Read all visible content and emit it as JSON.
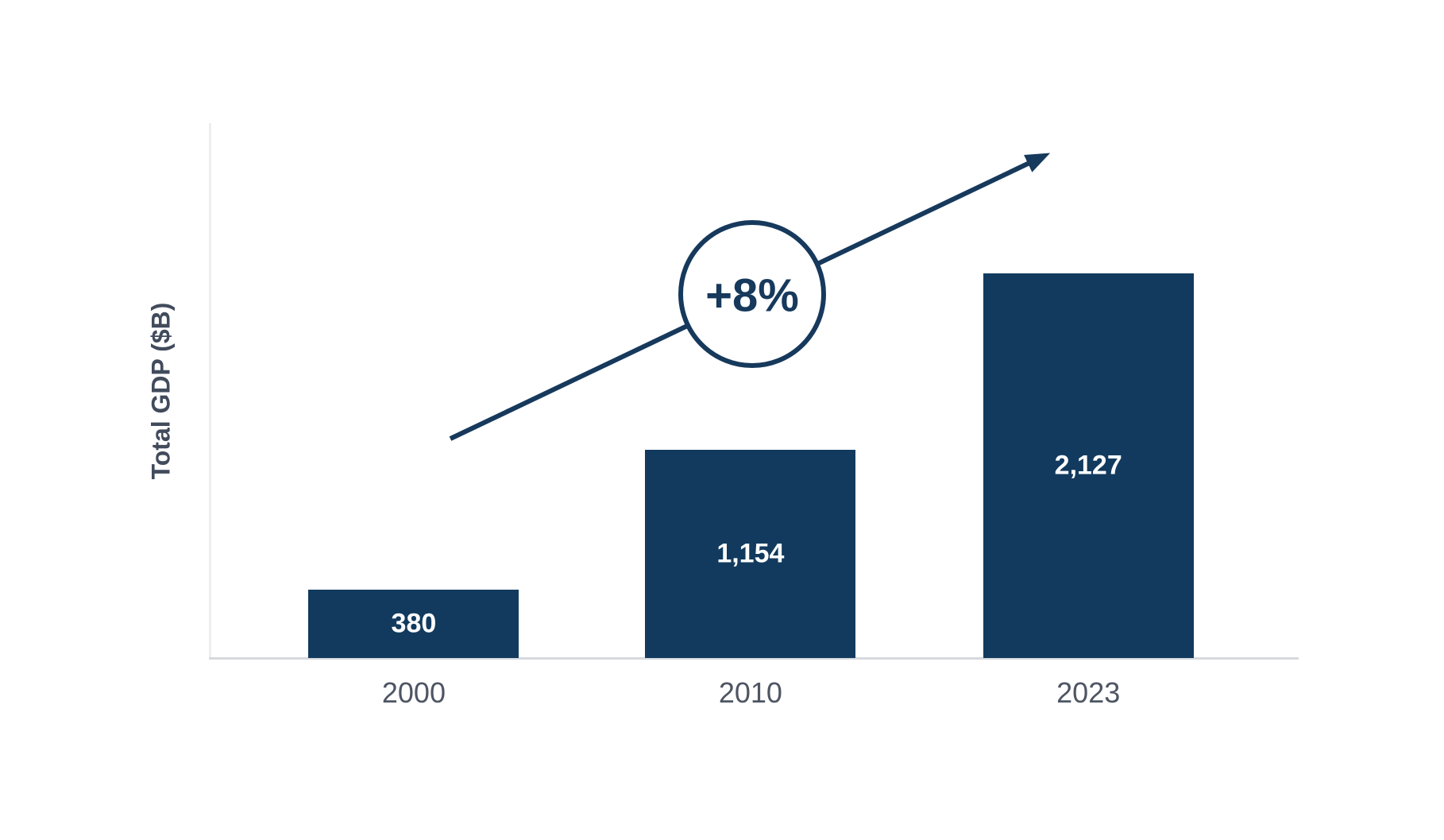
{
  "chart_data": {
    "type": "bar",
    "title": "",
    "xlabel": "",
    "ylabel": "Total GDP ($B)",
    "categories": [
      "2000",
      "2010",
      "2023"
    ],
    "values": [
      380,
      1154,
      2127
    ],
    "value_labels": [
      "380",
      "1,154",
      "2,127"
    ],
    "ylim": [
      0,
      2960
    ],
    "grid": false,
    "legend": "none",
    "axis_ticks_visible": false,
    "annotation": {
      "text": "+8%",
      "type": "trend-arrow-with-circle"
    },
    "colors": {
      "bar": "#123a5e",
      "trend_arrow": "#16395c",
      "bar_value_label": "#ffffff",
      "tick_label": "#4e5563",
      "axis_label": "#414b5c",
      "background": "#ffffff"
    }
  }
}
